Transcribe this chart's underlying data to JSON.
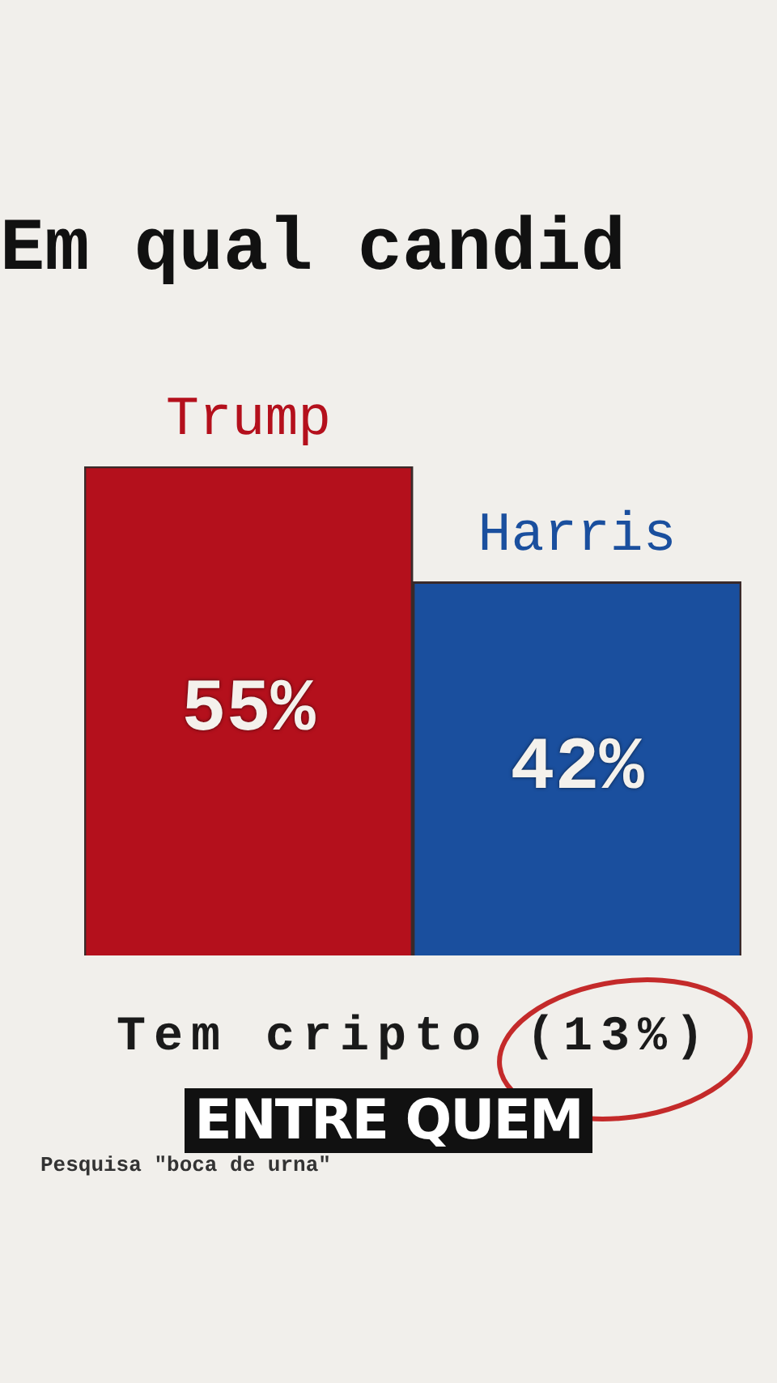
{
  "chart_data": {
    "type": "bar",
    "title": "Em qual candid",
    "categories": [
      "Trump",
      "Harris"
    ],
    "values": [
      55,
      42
    ],
    "colors": [
      "#b4101c",
      "#1a4f9e"
    ],
    "value_labels": [
      "55%",
      "42%"
    ],
    "annotations": [
      "Tem cripto (13%)",
      "ENTRE QUEM",
      "Pesquisa \"boca de urna\""
    ]
  }
}
